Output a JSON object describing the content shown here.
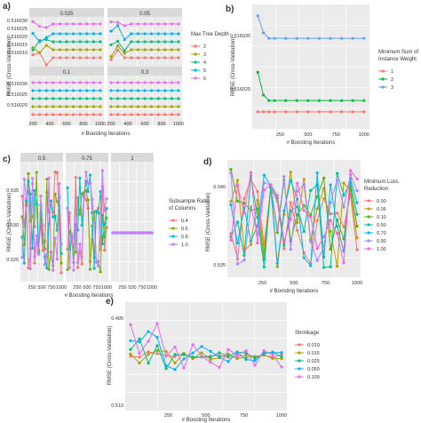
{
  "chart_data": [
    {
      "panel": "a)",
      "type": "line",
      "ylabel": "RMSE (Cross-Validation)",
      "xlabel": "# Boosting Iterations",
      "legend": {
        "title": "Max Tree Depth",
        "placement": "right",
        "entries": [
          "2",
          "3",
          "4",
          "5",
          "6"
        ],
        "colors": [
          "#f8766d",
          "#a3a500",
          "#00bf7d",
          "#00b0f6",
          "#e76bf3"
        ]
      },
      "facets": [
        "0.025",
        "0.05",
        "0.1",
        "0.3"
      ],
      "xlim": [
        200,
        1000
      ],
      "xticks": [
        200,
        400,
        600,
        800,
        1000
      ],
      "yticks_top": [
        "0.516030",
        "0.516025",
        "0.516020",
        "0.516015",
        "0.516010"
      ],
      "yticks_bottom": [
        "0.516030",
        "0.516025",
        "0.516020"
      ]
    },
    {
      "panel": "b)",
      "type": "line",
      "ylabel": "RMSE (Cross-Validation)",
      "xlabel": "# Boosting Iterations",
      "legend": {
        "title": "Minimum Sum of Instance Weight",
        "placement": "right",
        "entries": [
          "1",
          "2",
          "3"
        ],
        "colors": [
          "#f8766d",
          "#00ba38",
          "#619cff"
        ]
      },
      "xticks": [
        250,
        500,
        750,
        1000
      ],
      "yticks": [
        "0.516030",
        "0.516025"
      ],
      "series": [
        {
          "name": "1",
          "x": [
            50,
            100,
            150,
            200,
            300,
            400,
            500,
            600,
            700,
            800,
            900,
            1000
          ],
          "y": [
            0.516019,
            0.516019,
            0.516019,
            0.516019,
            0.516019,
            0.516019,
            0.516019,
            0.516019,
            0.516019,
            0.516019,
            0.516019,
            0.516019
          ]
        },
        {
          "name": "2",
          "x": [
            50,
            100,
            150,
            200,
            300,
            400,
            500,
            600,
            700,
            800,
            900,
            1000
          ],
          "y": [
            0.516026,
            0.516022,
            0.516021,
            0.516021,
            0.516021,
            0.516021,
            0.516021,
            0.516021,
            0.516021,
            0.516021,
            0.516021,
            0.516021
          ]
        },
        {
          "name": "3",
          "x": [
            50,
            100,
            150,
            200,
            300,
            400,
            500,
            600,
            700,
            800,
            900,
            1000
          ],
          "y": [
            0.516036,
            0.516033,
            0.516032,
            0.516032,
            0.516032,
            0.516032,
            0.516032,
            0.516032,
            0.516032,
            0.516032,
            0.516032,
            0.516032
          ]
        }
      ]
    },
    {
      "panel": "c)",
      "type": "line",
      "ylabel": "RMSE (Cross-Validation)",
      "xlabel": "# Boosting Iterations",
      "legend": {
        "title": "Subsample Ratio of Columns",
        "placement": "right",
        "entries": [
          "0.4",
          "0.6",
          "0.8",
          "1.0"
        ],
        "colors": [
          "#f8766d",
          "#7cae00",
          "#00bfc4",
          "#c77cff"
        ]
      },
      "facets": [
        "0.5",
        "0.75",
        "1"
      ],
      "xticks": [
        250,
        500,
        750,
        1000
      ],
      "yticks": [
        "0.535",
        "0.530",
        "0.525"
      ]
    },
    {
      "panel": "d)",
      "type": "line",
      "ylabel": "RMSE (Cross-Validation)",
      "xlabel": "# Boosting Iterations",
      "legend": {
        "title": "Minimum Loss Reduction",
        "placement": "right",
        "entries": [
          "0.00",
          "0.05",
          "0.10",
          "0.50",
          "0.70",
          "0.90",
          "1.00"
        ],
        "colors": [
          "#f8766d",
          "#c49a00",
          "#53b400",
          "#00c094",
          "#00b6eb",
          "#a58aff",
          "#fb61d7"
        ]
      },
      "xticks": [
        250,
        500,
        750,
        1000
      ],
      "yticks": [
        "0.540",
        "0.535"
      ]
    },
    {
      "panel": "e)",
      "type": "line",
      "ylabel": "RMSE (Cross-Validation)",
      "xlabel": "# Boosting Iterations",
      "legend": {
        "title": "Shrinkage",
        "placement": "right",
        "entries": [
          "0.010",
          "0.015",
          "0.025",
          "0.050",
          "0.100"
        ],
        "colors": [
          "#f8766d",
          "#a3a500",
          "#00bf7d",
          "#00b0f6",
          "#e76bf3"
        ]
      },
      "xticks": [
        250,
        500,
        750,
        1000
      ],
      "yticks": [
        "0.495",
        "0.510"
      ]
    }
  ]
}
